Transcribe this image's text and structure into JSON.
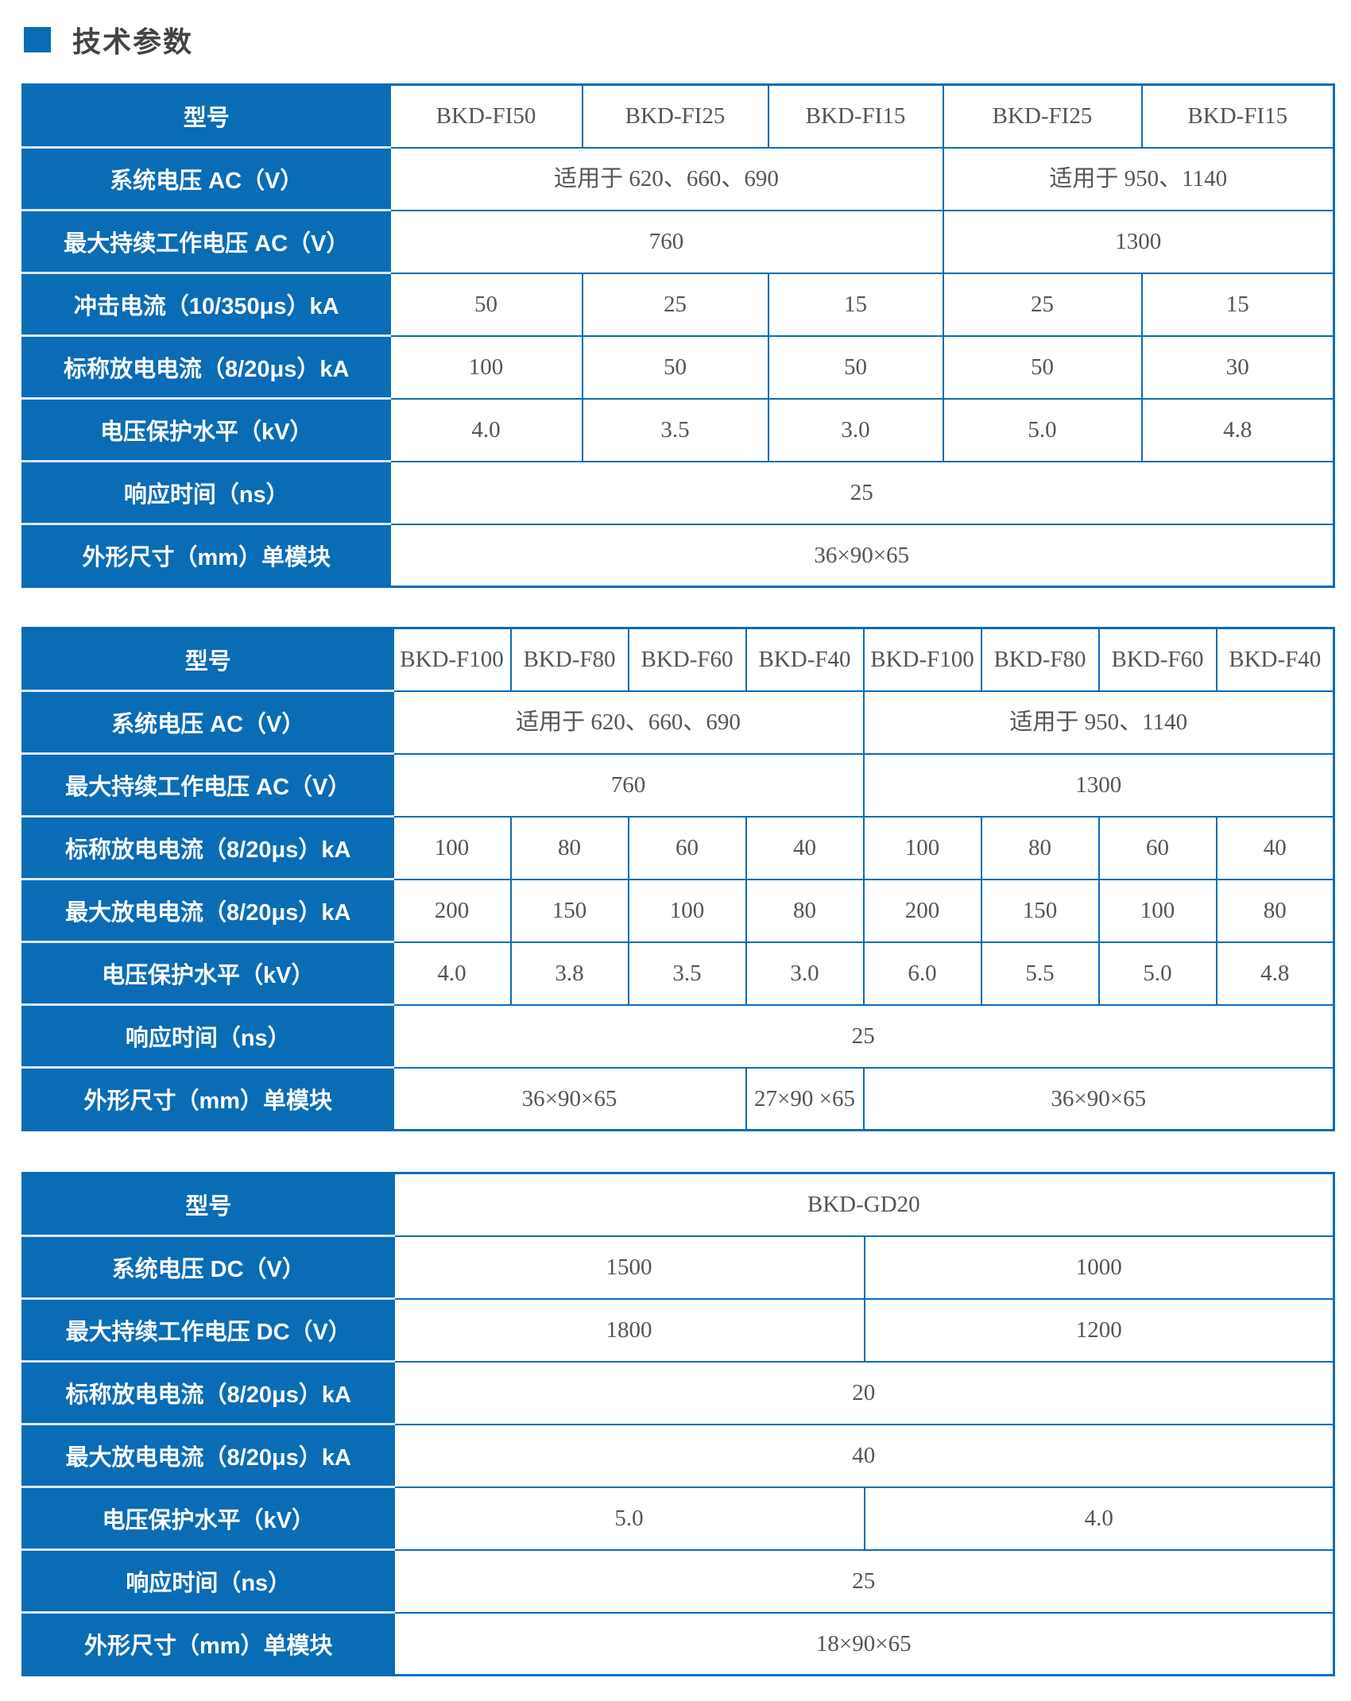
{
  "title": "技术参数",
  "colors": {
    "accent": "#0a6cb5"
  },
  "tables": [
    {
      "label_width": 462,
      "col_widths": [
        242,
        234,
        220,
        250,
        242
      ],
      "rows": [
        {
          "label": "型号",
          "cells": [
            {
              "text": "BKD-FI50",
              "span": 1
            },
            {
              "text": "BKD-FI25",
              "span": 1
            },
            {
              "text": "BKD-FI15",
              "span": 1
            },
            {
              "text": "BKD-FI25",
              "span": 1
            },
            {
              "text": "BKD-FI15",
              "span": 1
            }
          ]
        },
        {
          "label": "系统电压 AC（V）",
          "cells": [
            {
              "text": "适用于 620、660、690",
              "span": 3
            },
            {
              "text": "适用于 950、1140",
              "span": 2
            }
          ]
        },
        {
          "label": "最大持续工作电压 AC（V）",
          "cells": [
            {
              "text": "760",
              "span": 3
            },
            {
              "text": "1300",
              "span": 2
            }
          ]
        },
        {
          "label": "冲击电流（10/350μs）kA",
          "cells": [
            {
              "text": "50",
              "span": 1
            },
            {
              "text": "25",
              "span": 1
            },
            {
              "text": "15",
              "span": 1
            },
            {
              "text": "25",
              "span": 1
            },
            {
              "text": "15",
              "span": 1
            }
          ]
        },
        {
          "label": "标称放电电流（8/20μs）kA",
          "cells": [
            {
              "text": "100",
              "span": 1
            },
            {
              "text": "50",
              "span": 1
            },
            {
              "text": "50",
              "span": 1
            },
            {
              "text": "50",
              "span": 1
            },
            {
              "text": "30",
              "span": 1
            }
          ]
        },
        {
          "label": "电压保护水平（kV）",
          "cells": [
            {
              "text": "4.0",
              "span": 1
            },
            {
              "text": "3.5",
              "span": 1
            },
            {
              "text": "3.0",
              "span": 1
            },
            {
              "text": "5.0",
              "span": 1
            },
            {
              "text": "4.8",
              "span": 1
            }
          ]
        },
        {
          "label": "响应时间（ns）",
          "cells": [
            {
              "text": "25",
              "span": 5
            }
          ]
        },
        {
          "label": "外形尺寸（mm）单模块",
          "cells": [
            {
              "text": "36×90×65",
              "span": 5
            }
          ]
        }
      ]
    },
    {
      "label_width": 466,
      "col_widths": [
        148,
        148,
        148,
        148,
        148,
        148,
        148,
        148
      ],
      "rows": [
        {
          "label": "型号",
          "cells": [
            {
              "text": "BKD-F100",
              "span": 1
            },
            {
              "text": "BKD-F80",
              "span": 1
            },
            {
              "text": "BKD-F60",
              "span": 1
            },
            {
              "text": "BKD-F40",
              "span": 1
            },
            {
              "text": "BKD-F100",
              "span": 1
            },
            {
              "text": "BKD-F80",
              "span": 1
            },
            {
              "text": "BKD-F60",
              "span": 1
            },
            {
              "text": "BKD-F40",
              "span": 1
            }
          ]
        },
        {
          "label": "系统电压 AC（V）",
          "cells": [
            {
              "text": "适用于 620、660、690",
              "span": 4
            },
            {
              "text": "适用于 950、1140",
              "span": 4
            }
          ]
        },
        {
          "label": "最大持续工作电压 AC（V）",
          "cells": [
            {
              "text": "760",
              "span": 4
            },
            {
              "text": "1300",
              "span": 4
            }
          ]
        },
        {
          "label": "标称放电电流（8/20μs）kA",
          "cells": [
            {
              "text": "100",
              "span": 1
            },
            {
              "text": "80",
              "span": 1
            },
            {
              "text": "60",
              "span": 1
            },
            {
              "text": "40",
              "span": 1
            },
            {
              "text": "100",
              "span": 1
            },
            {
              "text": "80",
              "span": 1
            },
            {
              "text": "60",
              "span": 1
            },
            {
              "text": "40",
              "span": 1
            }
          ]
        },
        {
          "label": "最大放电电流（8/20μs）kA",
          "cells": [
            {
              "text": "200",
              "span": 1
            },
            {
              "text": "150",
              "span": 1
            },
            {
              "text": "100",
              "span": 1
            },
            {
              "text": "80",
              "span": 1
            },
            {
              "text": "200",
              "span": 1
            },
            {
              "text": "150",
              "span": 1
            },
            {
              "text": "100",
              "span": 1
            },
            {
              "text": "80",
              "span": 1
            }
          ]
        },
        {
          "label": "电压保护水平（kV）",
          "cells": [
            {
              "text": "4.0",
              "span": 1
            },
            {
              "text": "3.8",
              "span": 1
            },
            {
              "text": "3.5",
              "span": 1
            },
            {
              "text": "3.0",
              "span": 1
            },
            {
              "text": "6.0",
              "span": 1
            },
            {
              "text": "5.5",
              "span": 1
            },
            {
              "text": "5.0",
              "span": 1
            },
            {
              "text": "4.8",
              "span": 1
            }
          ]
        },
        {
          "label": "响应时间（ns）",
          "cells": [
            {
              "text": "25",
              "span": 8
            }
          ]
        },
        {
          "label": "外形尺寸（mm）单模块",
          "cells": [
            {
              "text": "36×90×65",
              "span": 3
            },
            {
              "text": "27×90 ×65",
              "span": 1
            },
            {
              "text": "36×90×65",
              "span": 4
            }
          ]
        }
      ]
    },
    {
      "label_width": 467,
      "col_widths": [
        592,
        591
      ],
      "rows": [
        {
          "label": "型号",
          "cells": [
            {
              "text": "BKD-GD20",
              "span": 2
            }
          ]
        },
        {
          "label": "系统电压 DC（V）",
          "cells": [
            {
              "text": "1500",
              "span": 1
            },
            {
              "text": "1000",
              "span": 1
            }
          ]
        },
        {
          "label": "最大持续工作电压 DC（V）",
          "cells": [
            {
              "text": "1800",
              "span": 1
            },
            {
              "text": "1200",
              "span": 1
            }
          ]
        },
        {
          "label": "标称放电电流（8/20μs）kA",
          "cells": [
            {
              "text": "20",
              "span": 2
            }
          ]
        },
        {
          "label": "最大放电电流（8/20μs）kA",
          "cells": [
            {
              "text": "40",
              "span": 2
            }
          ]
        },
        {
          "label": "电压保护水平（kV）",
          "cells": [
            {
              "text": "5.0",
              "span": 1
            },
            {
              "text": "4.0",
              "span": 1
            }
          ]
        },
        {
          "label": "响应时间（ns）",
          "cells": [
            {
              "text": "25",
              "span": 2
            }
          ]
        },
        {
          "label": "外形尺寸（mm）单模块",
          "cells": [
            {
              "text": "18×90×65",
              "span": 2
            }
          ]
        }
      ]
    }
  ]
}
